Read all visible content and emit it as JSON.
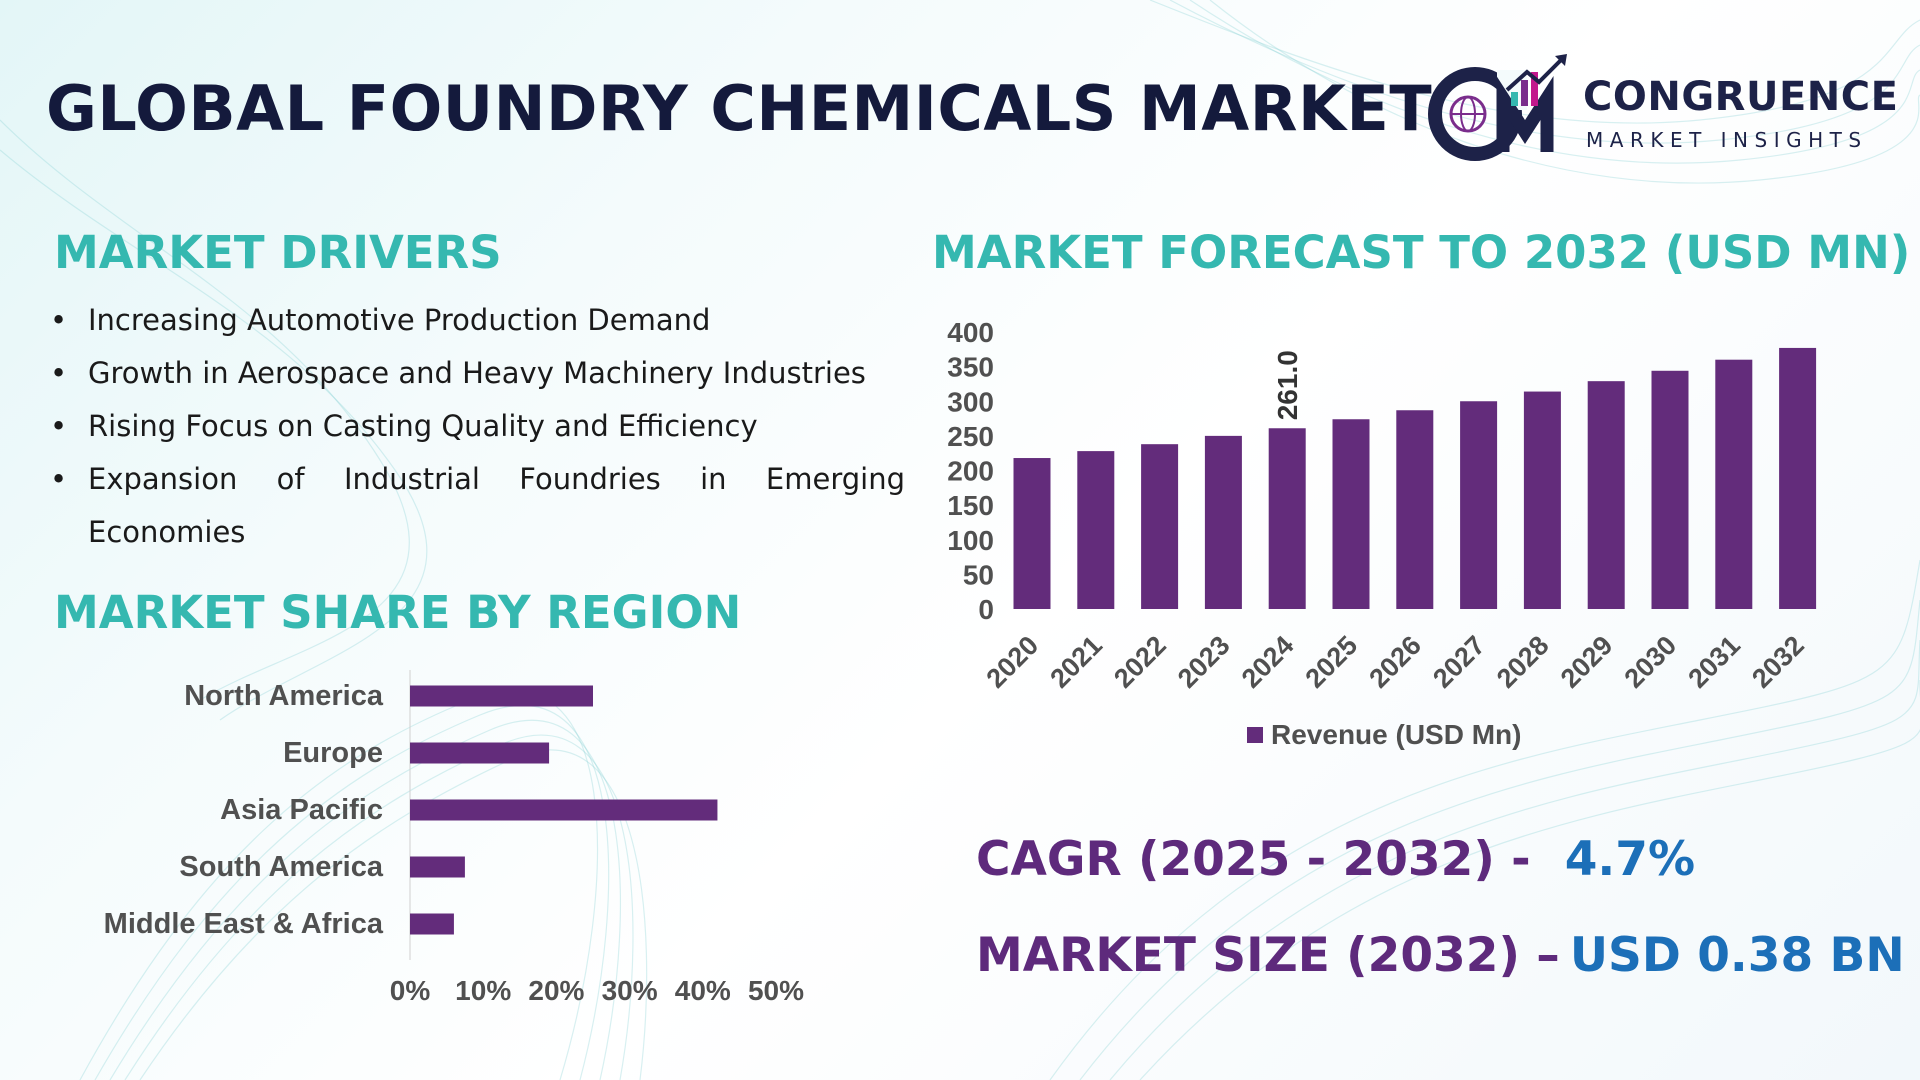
{
  "title": "GLOBAL FOUNDRY CHEMICALS MARKET",
  "logo": {
    "name": "CONGRUENCE",
    "tagline": "MARKET INSIGHTS"
  },
  "drivers": {
    "heading": "MARKET DRIVERS",
    "items": [
      "Increasing Automotive Production Demand",
      "Growth in Aerospace and Heavy Machinery Industries",
      "Rising Focus on Casting Quality and Efficiency",
      "Expansion of Industrial Foundries in Emerging Economies"
    ]
  },
  "region": {
    "heading": "MARKET SHARE BY REGION"
  },
  "forecast": {
    "heading": "MARKET FORECAST TO 2032 (USD MN)"
  },
  "stats": {
    "cagr_label": "CAGR (2025 - 2032) -",
    "cagr_value": "4.7%",
    "size_label": "MARKET SIZE (2032) –",
    "size_value": "USD 0.38 BN"
  },
  "colors": {
    "bar": "#632c7b",
    "teal": "#35b8b0",
    "navy": "#141a3c",
    "blue": "#1c6fb8"
  },
  "chart_data": [
    {
      "type": "bar",
      "orientation": "horizontal",
      "categories": [
        "North America",
        "Europe",
        "Asia Pacific",
        "South America",
        "Middle East & Africa"
      ],
      "values": [
        25,
        19,
        42,
        7.5,
        6
      ],
      "xlim": [
        0,
        50
      ],
      "xticks": [
        "0%",
        "10%",
        "20%",
        "30%",
        "40%",
        "50%"
      ],
      "grid": false,
      "legend": "none"
    },
    {
      "type": "bar",
      "categories": [
        "2020",
        "2021",
        "2022",
        "2023",
        "2024",
        "2025",
        "2026",
        "2027",
        "2028",
        "2029",
        "2030",
        "2031",
        "2032"
      ],
      "series": [
        {
          "name": "Revenue (USD Mn)",
          "values": [
            218,
            228,
            238,
            250,
            261.0,
            274,
            287,
            300,
            314,
            329,
            344,
            360,
            377
          ]
        }
      ],
      "data_labels": [
        {
          "category": "2024",
          "text": "261.0"
        }
      ],
      "ylim": [
        0,
        400
      ],
      "yticks": [
        0,
        50,
        100,
        150,
        200,
        250,
        300,
        350,
        400
      ],
      "grid": false,
      "legend": "bottom"
    }
  ]
}
